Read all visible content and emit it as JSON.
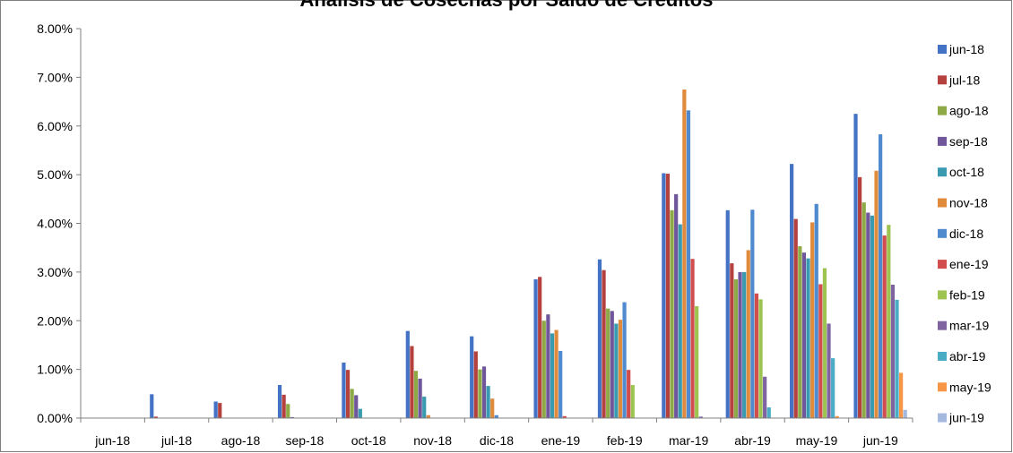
{
  "chart_data": {
    "type": "bar",
    "title": "Análisis de Cosechas por Saldo de Créditos",
    "xlabel": "",
    "ylabel": "",
    "ylim": [
      0,
      0.08
    ],
    "y_ticks": [
      "0.00%",
      "1.00%",
      "2.00%",
      "3.00%",
      "4.00%",
      "5.00%",
      "6.00%",
      "7.00%",
      "8.00%"
    ],
    "grid": false,
    "legend": "right",
    "categories": [
      "jun-18",
      "jul-18",
      "ago-18",
      "sep-18",
      "oct-18",
      "nov-18",
      "dic-18",
      "ene-19",
      "feb-19",
      "mar-19",
      "abr-19",
      "may-19",
      "jun-19"
    ],
    "series": [
      {
        "name": "jun-18",
        "color": "#4472C4",
        "values": [
          0.0,
          0.0049,
          0.0034,
          0.0068,
          0.0114,
          0.0179,
          0.0168,
          0.0285,
          0.0326,
          0.0503,
          0.0427,
          0.0522,
          0.0625
        ]
      },
      {
        "name": "jul-18",
        "color": "#B5413E",
        "values": [
          null,
          0.0003,
          0.0031,
          0.0048,
          0.0099,
          0.0148,
          0.0137,
          0.029,
          0.0304,
          0.0502,
          0.0318,
          0.0409,
          0.0495
        ]
      },
      {
        "name": "ago-18",
        "color": "#8EAA46",
        "values": [
          null,
          null,
          0.0,
          0.0029,
          0.006,
          0.0097,
          0.01,
          0.02,
          0.0225,
          0.0427,
          0.0285,
          0.0353,
          0.0443
        ]
      },
      {
        "name": "sep-18",
        "color": "#70569B",
        "values": [
          null,
          null,
          null,
          0.0002,
          0.0047,
          0.0081,
          0.0106,
          0.0213,
          0.022,
          0.046,
          0.03,
          0.034,
          0.0422
        ]
      },
      {
        "name": "oct-18",
        "color": "#3A9BB0",
        "values": [
          null,
          null,
          null,
          null,
          0.0019,
          0.0044,
          0.0066,
          0.0174,
          0.0194,
          0.0398,
          0.03,
          0.0328,
          0.0416
        ]
      },
      {
        "name": "nov-18",
        "color": "#E08A3B",
        "values": [
          null,
          null,
          null,
          null,
          null,
          0.0006,
          0.004,
          0.0181,
          0.0202,
          0.0675,
          0.0345,
          0.0402,
          0.0508
        ]
      },
      {
        "name": "dic-18",
        "color": "#4F8ACF",
        "values": [
          null,
          null,
          null,
          null,
          null,
          null,
          0.0006,
          0.0138,
          0.0238,
          0.0632,
          0.0428,
          0.044,
          0.0583
        ]
      },
      {
        "name": "ene-19",
        "color": "#D24D4D",
        "values": [
          null,
          null,
          null,
          null,
          null,
          null,
          null,
          0.0004,
          0.0099,
          0.0327,
          0.0256,
          0.0275,
          0.0375
        ]
      },
      {
        "name": "feb-19",
        "color": "#9DC451",
        "values": [
          null,
          null,
          null,
          null,
          null,
          null,
          null,
          null,
          0.0068,
          0.023,
          0.0244,
          0.0308,
          0.0397
        ]
      },
      {
        "name": "mar-19",
        "color": "#8064A2",
        "values": [
          null,
          null,
          null,
          null,
          null,
          null,
          null,
          null,
          null,
          0.0003,
          0.0085,
          0.0194,
          0.0274
        ]
      },
      {
        "name": "abr-19",
        "color": "#4BACC6",
        "values": [
          null,
          null,
          null,
          null,
          null,
          null,
          null,
          null,
          null,
          null,
          0.0022,
          0.0123,
          0.0243
        ]
      },
      {
        "name": "may-19",
        "color": "#F79646",
        "values": [
          null,
          null,
          null,
          null,
          null,
          null,
          null,
          null,
          null,
          null,
          null,
          0.0004,
          0.0093
        ]
      },
      {
        "name": "jun-19",
        "color": "#A5B8DE",
        "values": [
          null,
          null,
          null,
          null,
          null,
          null,
          null,
          null,
          null,
          null,
          null,
          null,
          0.0017
        ]
      }
    ]
  }
}
